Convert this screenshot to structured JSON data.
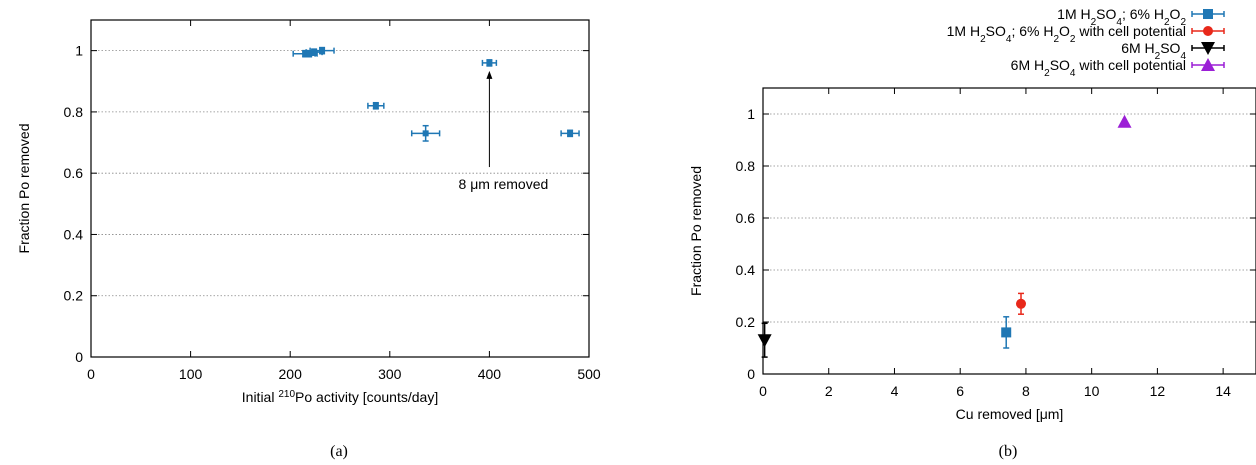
{
  "chart_data": [
    {
      "type": "scatter",
      "panel": "a",
      "caption": "(a)",
      "ylabel": "Fraction Po removed",
      "xlabel": {
        "pre": "Initial ",
        "sup": "210",
        "post": "Po activity [counts/day]"
      },
      "xlim": [
        0,
        500
      ],
      "ylim": [
        0,
        1.1
      ],
      "xticks": [
        0,
        100,
        200,
        300,
        400,
        500
      ],
      "yticks": [
        0,
        0.2,
        0.4,
        0.6,
        0.8,
        1
      ],
      "grid": "horizontal",
      "color": "#1f77b4",
      "series": [
        {
          "points": [
            {
              "x": 215,
              "y": 0.99,
              "xerr": 12,
              "yerr": 0.01
            },
            {
              "x": 219,
              "y": 0.99,
              "xerr": 6,
              "yerr": 0.01
            },
            {
              "x": 224,
              "y": 0.995,
              "xerr": 8,
              "yerr": 0.01
            },
            {
              "x": 232,
              "y": 1.0,
              "xerr": 12,
              "yerr": 0.01
            },
            {
              "x": 286,
              "y": 0.82,
              "xerr": 8,
              "yerr": 0.01
            },
            {
              "x": 336,
              "y": 0.73,
              "xerr": 14,
              "yerr": 0.025
            },
            {
              "x": 400,
              "y": 0.96,
              "xerr": 7,
              "yerr": 0.01
            },
            {
              "x": 481,
              "y": 0.73,
              "xerr": 9,
              "yerr": 0.01
            }
          ]
        }
      ],
      "annotation": {
        "text": "8 μm removed",
        "arrow_to": [
          400,
          0.96
        ],
        "arrow_from": [
          400,
          0.62
        ]
      }
    },
    {
      "type": "scatter",
      "panel": "b",
      "caption": "(b)",
      "ylabel": "Fraction Po removed",
      "xlabel": "Cu removed [μm]",
      "xlim": [
        0,
        15
      ],
      "ylim": [
        0,
        1.1
      ],
      "xticks": [
        0,
        2,
        4,
        6,
        8,
        10,
        12,
        14
      ],
      "yticks": [
        0,
        0.2,
        0.4,
        0.6,
        0.8,
        1
      ],
      "grid": "horizontal",
      "legend_position": "top-right",
      "series": [
        {
          "name": "1M H2SO4; 6% H2O2",
          "legend": [
            [
              "1M H",
              "2",
              "SO",
              "4",
              "; 6% H",
              "2",
              "O",
              "2"
            ]
          ],
          "color": "#1f77b4",
          "marker": "square",
          "points": [
            {
              "x": 7.4,
              "y": 0.16,
              "yerr": 0.06
            }
          ]
        },
        {
          "name": "1M H2SO4; 6% H2O2 with cell potential",
          "legend": [
            [
              "1M H",
              "2",
              "SO",
              "4",
              "; 6% H",
              "2",
              "O",
              "2",
              " with cell potential"
            ]
          ],
          "color": "#e8281a",
          "marker": "circle",
          "points": [
            {
              "x": 7.85,
              "y": 0.27,
              "yerr": 0.04
            }
          ]
        },
        {
          "name": "6M H2SO4",
          "legend": [
            [
              "6M H",
              "2",
              "SO",
              "4"
            ]
          ],
          "color": "#000000",
          "marker": "triangle-down",
          "points": [
            {
              "x": 0.05,
              "y": 0.13,
              "yerr": 0.065
            }
          ]
        },
        {
          "name": "6M H2SO4 with cell potential",
          "legend": [
            [
              "6M H",
              "2",
              "SO",
              "4",
              " with cell potential"
            ]
          ],
          "color": "#9b1fd6",
          "marker": "triangle-up",
          "points": [
            {
              "x": 11.0,
              "y": 0.97,
              "yerr": 0.0
            }
          ]
        }
      ]
    }
  ]
}
